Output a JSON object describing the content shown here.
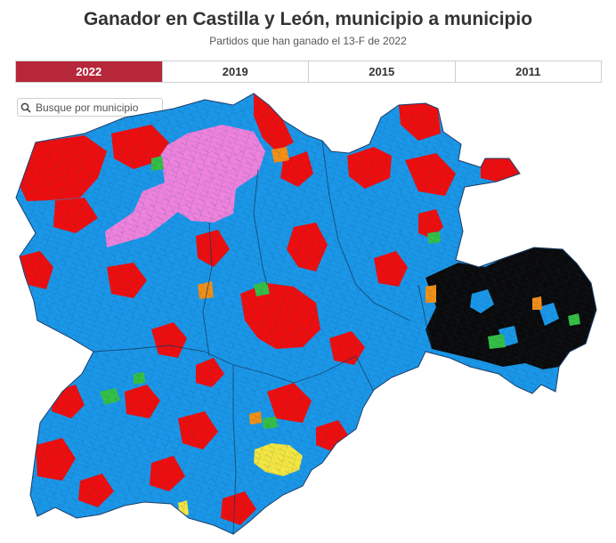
{
  "header": {
    "title": "Ganador en Castilla y León, municipio a municipio",
    "subtitle": "Partidos que han ganado el 13-F de 2022"
  },
  "tabs": [
    {
      "label": "2022",
      "active": true
    },
    {
      "label": "2019",
      "active": false
    },
    {
      "label": "2015",
      "active": false
    },
    {
      "label": "2011",
      "active": false
    }
  ],
  "search": {
    "placeholder": "Busque por municipio",
    "value": "",
    "icon": "search-icon"
  },
  "map": {
    "region": "Castilla y León",
    "colors": {
      "base": "#1a97e8",
      "red": "#f00d0d",
      "black": "#0a0a0a",
      "pink": "#ee82dd",
      "green": "#34c045",
      "orange": "#f39016",
      "yellow": "#f4e640",
      "border": "#1b3f6b",
      "active_tab": "#b7273a"
    }
  }
}
